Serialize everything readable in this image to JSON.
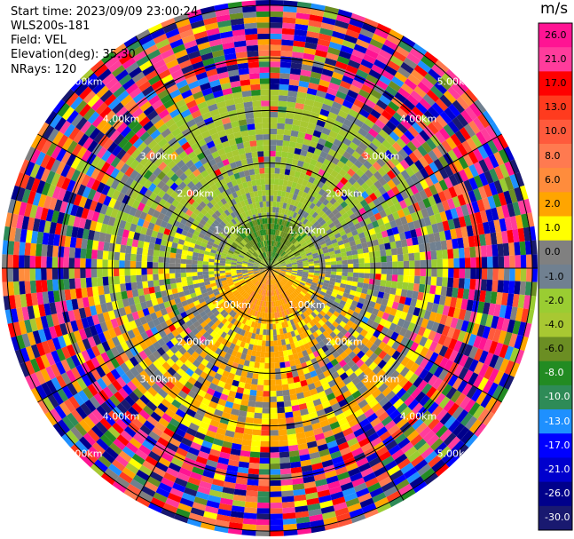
{
  "header": {
    "start_time": "Start time: 2023/09/09 23:00:24",
    "instrument": "WLS200s-181",
    "field": "Field: VEL",
    "elevation": "Elevation(deg): 35.30",
    "nrays": "NRays: 120"
  },
  "chart_data": {
    "type": "heatmap",
    "projection": "polar-ppi",
    "field": "VEL",
    "units": "m/s",
    "n_rays": 120,
    "elevation_deg": 35.3,
    "range_rings_km": [
      1.0,
      2.0,
      3.0,
      4.0,
      5.0
    ],
    "ring_label_text": [
      "1.00km",
      "2.00km",
      "3.00km",
      "4.00km",
      "5.00km"
    ],
    "max_range_km": 5.1,
    "radial_lines_deg": [
      0,
      30,
      60,
      90,
      120,
      150,
      180,
      210,
      240,
      270,
      300,
      330
    ],
    "colorbar": {
      "title": "m/s",
      "tick_labels": [
        "26.0",
        "21.0",
        "17.0",
        "13.0",
        "10.0",
        "8.0",
        "6.0",
        "2.0",
        "1.0",
        "0.0",
        "-1.0",
        "-2.0",
        "-4.0",
        "-6.0",
        "-8.0",
        "-10.0",
        "-13.0",
        "-17.0",
        "-21.0",
        "-26.0",
        "-30.0"
      ],
      "bins": [
        {
          "lo": 26,
          "hi": 30,
          "color": "#ff1493"
        },
        {
          "lo": 21,
          "hi": 26,
          "color": "#ff3c9c"
        },
        {
          "lo": 17,
          "hi": 21,
          "color": "#ff0000"
        },
        {
          "lo": 13,
          "hi": 17,
          "color": "#ff3b1e"
        },
        {
          "lo": 10,
          "hi": 13,
          "color": "#ff5a3c"
        },
        {
          "lo": 8,
          "hi": 10,
          "color": "#ff7a50"
        },
        {
          "lo": 6,
          "hi": 8,
          "color": "#ff8c3c"
        },
        {
          "lo": 2,
          "hi": 6,
          "color": "#ffa500"
        },
        {
          "lo": 1,
          "hi": 2,
          "color": "#ffff00"
        },
        {
          "lo": 0,
          "hi": 1,
          "color": "#808080"
        },
        {
          "lo": -1,
          "hi": 0,
          "color": "#708090"
        },
        {
          "lo": -2,
          "hi": -1,
          "color": "#9acd32"
        },
        {
          "lo": -4,
          "hi": -2,
          "color": "#a8c832"
        },
        {
          "lo": -6,
          "hi": -4,
          "color": "#6b8e23"
        },
        {
          "lo": -8,
          "hi": -6,
          "color": "#228b22"
        },
        {
          "lo": -10,
          "hi": -8,
          "color": "#2e8b57"
        },
        {
          "lo": -13,
          "hi": -10,
          "color": "#1e90ff"
        },
        {
          "lo": -17,
          "hi": -13,
          "color": "#0000ff"
        },
        {
          "lo": -21,
          "hi": -17,
          "color": "#0000cd"
        },
        {
          "lo": -26,
          "hi": -21,
          "color": "#00008b"
        },
        {
          "lo": -30,
          "hi": -26,
          "color": "#191970"
        }
      ]
    },
    "velocity_pattern": {
      "description_values_in_m_s": true,
      "inner_north": -6,
      "inner_south": 6,
      "mid_north": -2,
      "mid_south": 2,
      "noise_beyond_km": 3.4
    }
  }
}
